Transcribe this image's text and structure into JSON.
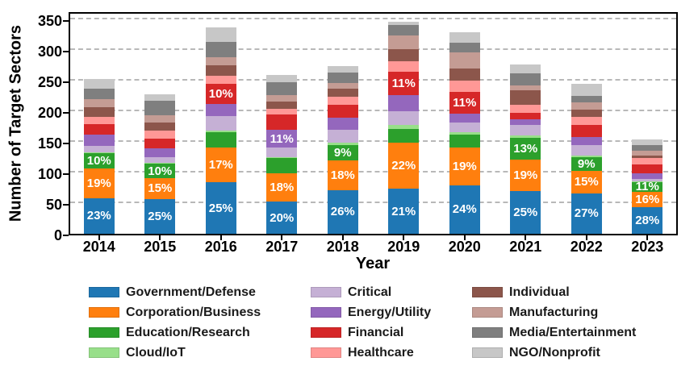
{
  "chart_data": {
    "type": "bar",
    "stacked": true,
    "title": "",
    "xlabel": "Year",
    "ylabel": "Number of Target Sectors",
    "ylim": [
      0,
      364
    ],
    "yticks": [
      0,
      50,
      100,
      150,
      200,
      250,
      300,
      350
    ],
    "grid": "horizontal-dashed",
    "legend_position": "bottom",
    "categories": [
      "2014",
      "2015",
      "2016",
      "2017",
      "2018",
      "2019",
      "2020",
      "2021",
      "2022",
      "2023"
    ],
    "totals": [
      252,
      227,
      336,
      259,
      274,
      346,
      328,
      276,
      244,
      154
    ],
    "series": [
      {
        "name": "Government/Defense",
        "color": "#1f77b4",
        "values": [
          58,
          57,
          84,
          52,
          71,
          73,
          79,
          69,
          66,
          43
        ],
        "labels": [
          "23%",
          "25%",
          "25%",
          "20%",
          "26%",
          "21%",
          "24%",
          "25%",
          "27%",
          "28%"
        ]
      },
      {
        "name": "Corporation/Business",
        "color": "#ff7f0e",
        "values": [
          48,
          34,
          57,
          47,
          49,
          76,
          62,
          52,
          37,
          25
        ],
        "labels": [
          "19%",
          "15%",
          "17%",
          "18%",
          "18%",
          "22%",
          "19%",
          "19%",
          "15%",
          "16%"
        ]
      },
      {
        "name": "Education/Research",
        "color": "#2ca02c",
        "values": [
          25,
          23,
          24,
          24,
          25,
          22,
          21,
          36,
          22,
          17
        ],
        "labels": [
          "10%",
          "10%",
          "",
          "",
          "9%",
          "",
          "",
          "13%",
          "9%",
          "11%"
        ]
      },
      {
        "name": "Cloud/IoT",
        "color": "#98df8a",
        "values": [
          2,
          2,
          3,
          2,
          4,
          7,
          4,
          4,
          2,
          1
        ],
        "labels": [
          "",
          "",
          "",
          "",
          "",
          "",
          "",
          "",
          "",
          ""
        ]
      },
      {
        "name": "Critical",
        "color": "#c5b0d5",
        "values": [
          10,
          9,
          24,
          16,
          20,
          22,
          16,
          17,
          18,
          3
        ],
        "labels": [
          "",
          "",
          "",
          "",
          "",
          "",
          "",
          "",
          "",
          ""
        ]
      },
      {
        "name": "Energy/Utility",
        "color": "#9467bd",
        "values": [
          19,
          14,
          19,
          28,
          20,
          26,
          14,
          9,
          13,
          10
        ],
        "labels": [
          "",
          "",
          "",
          "11%",
          "",
          "",
          "",
          "",
          "",
          ""
        ]
      },
      {
        "name": "Financial",
        "color": "#d62728",
        "values": [
          17,
          16,
          34,
          26,
          21,
          38,
          36,
          10,
          19,
          14
        ],
        "labels": [
          "",
          "",
          "10%",
          "",
          "",
          "11%",
          "11%",
          "",
          "",
          ""
        ]
      },
      {
        "name": "Healthcare",
        "color": "#ff9896",
        "values": [
          12,
          13,
          13,
          9,
          14,
          17,
          18,
          13,
          13,
          11
        ],
        "labels": [
          "",
          "",
          "",
          "",
          "",
          "",
          "",
          "",
          "",
          ""
        ]
      },
      {
        "name": "Individual",
        "color": "#8c564b",
        "values": [
          15,
          13,
          17,
          12,
          13,
          20,
          20,
          24,
          12,
          4
        ],
        "labels": [
          "",
          "",
          "",
          "",
          "",
          "",
          "",
          "",
          "",
          ""
        ]
      },
      {
        "name": "Manufacturing",
        "color": "#c49c94",
        "values": [
          13,
          12,
          13,
          10,
          9,
          22,
          26,
          8,
          12,
          8
        ],
        "labels": [
          "",
          "",
          "",
          "",
          "",
          "",
          "",
          "",
          "",
          ""
        ]
      },
      {
        "name": "Media/Entertainment",
        "color": "#7f7f7f",
        "values": [
          18,
          24,
          25,
          21,
          17,
          17,
          16,
          19,
          11,
          9
        ],
        "labels": [
          "",
          "",
          "",
          "",
          "",
          "",
          "",
          "",
          "",
          ""
        ]
      },
      {
        "name": "NGO/Nonprofit",
        "color": "#c7c7c7",
        "values": [
          15,
          10,
          23,
          12,
          11,
          6,
          16,
          15,
          19,
          9
        ],
        "labels": [
          "",
          "",
          "",
          "",
          "",
          "",
          "",
          "",
          "",
          ""
        ]
      }
    ],
    "legend_columns": [
      [
        "Government/Defense",
        "Corporation/Business",
        "Education/Research",
        "Cloud/IoT"
      ],
      [
        "Critical",
        "Energy/Utility",
        "Financial",
        "Healthcare"
      ],
      [
        "Individual",
        "Manufacturing",
        "Media/Entertainment",
        "NGO/Nonprofit"
      ]
    ]
  }
}
